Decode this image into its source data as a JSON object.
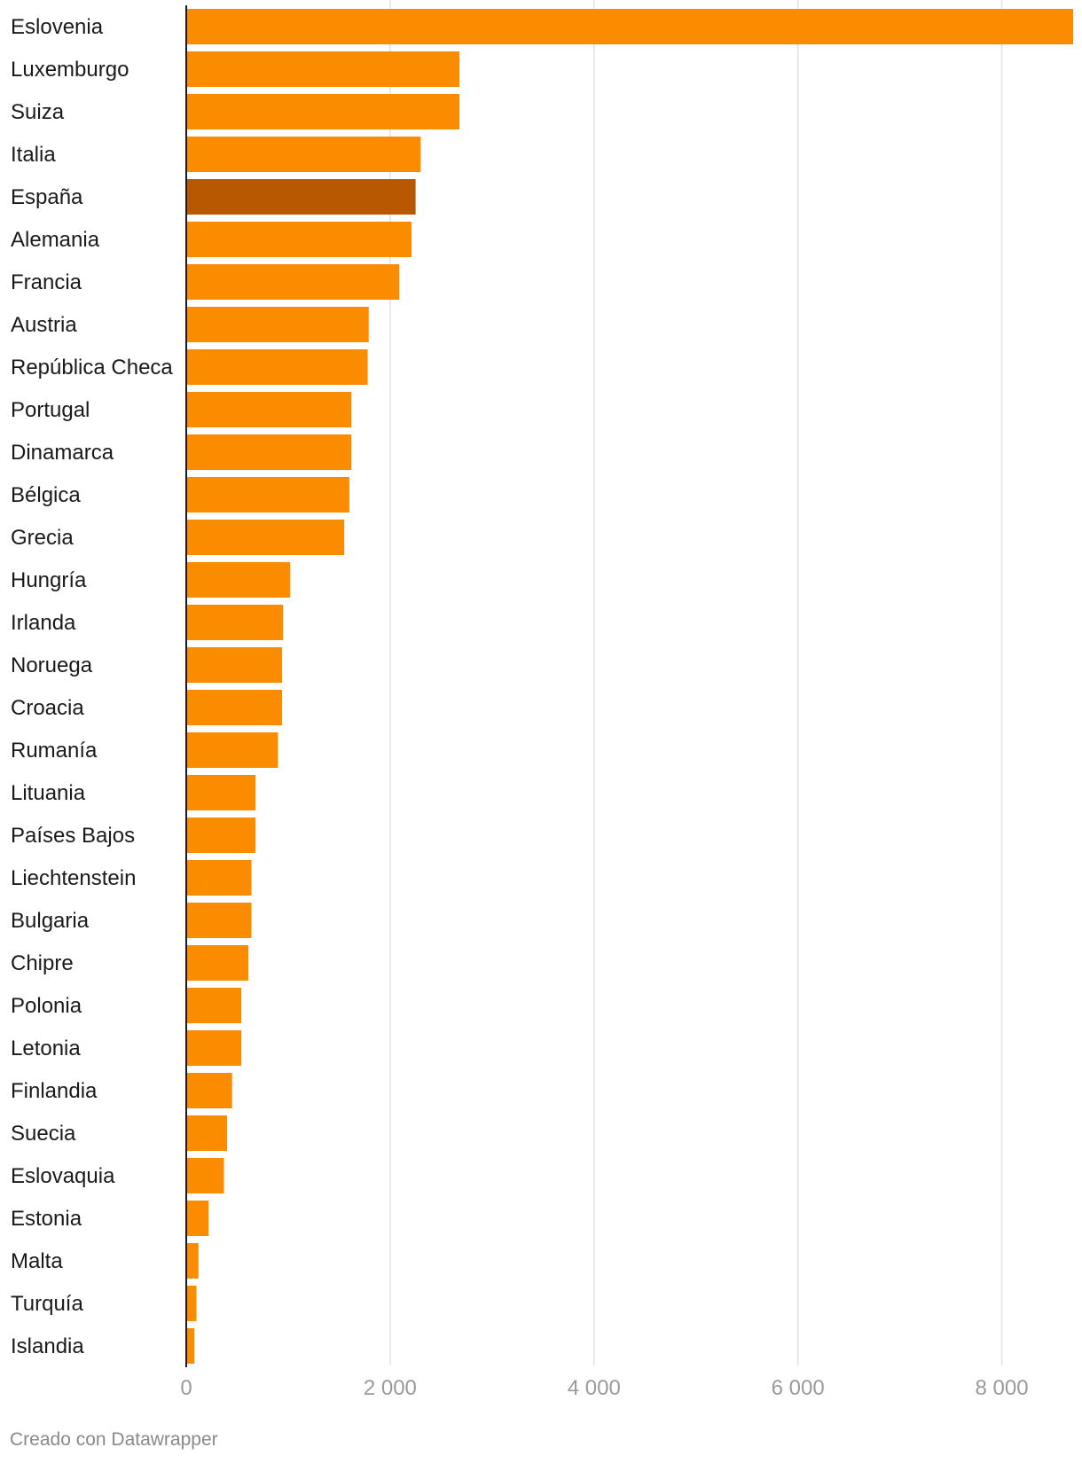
{
  "chart_data": {
    "type": "bar",
    "orientation": "horizontal",
    "title": "",
    "xlabel": "",
    "ylabel": "",
    "xlim": [
      0,
      8700
    ],
    "ticks": [
      0,
      2000,
      4000,
      6000,
      8000
    ],
    "tick_labels": [
      "0",
      "2 000",
      "4 000",
      "6 000",
      "8 000"
    ],
    "grid": true,
    "categories": [
      "Eslovenia",
      "Luxemburgo",
      "Suiza",
      "Italia",
      "España",
      "Alemania",
      "Francia",
      "Austria",
      "República Checa",
      "Portugal",
      "Dinamarca",
      "Bélgica",
      "Grecia",
      "Hungría",
      "Irlanda",
      "Noruega",
      "Croacia",
      "Rumanía",
      "Lituania",
      "Países Bajos",
      "Liechtenstein",
      "Bulgaria",
      "Chipre",
      "Polonia",
      "Letonia",
      "Finlandia",
      "Suecia",
      "Eslovaquia",
      "Estonia",
      "Malta",
      "Turquía",
      "Islandia"
    ],
    "values": [
      8700,
      2680,
      2680,
      2300,
      2250,
      2210,
      2090,
      1790,
      1780,
      1620,
      1620,
      1600,
      1550,
      1020,
      950,
      940,
      940,
      900,
      680,
      680,
      640,
      640,
      610,
      540,
      540,
      450,
      400,
      370,
      220,
      120,
      100,
      80
    ],
    "colors": {
      "default": "#FB8C00",
      "highlight": "#B85800",
      "highlight_category": "España"
    }
  },
  "footer": {
    "credit": "Creado con Datawrapper"
  }
}
